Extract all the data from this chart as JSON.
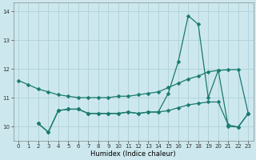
{
  "xlabel": "Humidex (Indice chaleur)",
  "bg_color": "#cce8ee",
  "grid_color": "#b0d0d8",
  "line_color": "#1a7a6e",
  "xlim": [
    -0.5,
    23.5
  ],
  "ylim": [
    9.5,
    14.3
  ],
  "yticks": [
    10,
    11,
    12,
    13,
    14
  ],
  "xticks": [
    0,
    1,
    2,
    3,
    4,
    5,
    6,
    7,
    8,
    9,
    10,
    11,
    12,
    13,
    14,
    15,
    16,
    17,
    18,
    19,
    20,
    21,
    22,
    23
  ],
  "line1_x": [
    0,
    1,
    2,
    3,
    4,
    5,
    6,
    7,
    8,
    9,
    10,
    11,
    12,
    13,
    14,
    15,
    16,
    17,
    18,
    19,
    20,
    21,
    22,
    23
  ],
  "line1_y": [
    11.6,
    11.45,
    11.3,
    11.2,
    11.1,
    11.05,
    11.0,
    11.0,
    11.0,
    11.0,
    11.05,
    11.05,
    11.1,
    11.15,
    11.2,
    11.35,
    11.5,
    11.65,
    11.75,
    11.9,
    11.95,
    11.97,
    11.98,
    10.45
  ],
  "line2_x": [
    2,
    3,
    4,
    5,
    6,
    7,
    8,
    9,
    10,
    11,
    12,
    13,
    14,
    15,
    16,
    17,
    18,
    19,
    20,
    21,
    22,
    23
  ],
  "line2_y": [
    10.1,
    9.8,
    10.55,
    10.6,
    10.6,
    10.45,
    10.45,
    10.45,
    10.45,
    10.5,
    10.45,
    10.5,
    10.5,
    11.15,
    12.25,
    13.85,
    13.55,
    11.0,
    11.95,
    10.0,
    9.98,
    10.45
  ],
  "line3_x": [
    2,
    3,
    4,
    5,
    6,
    7,
    8,
    9,
    10,
    11,
    12,
    13,
    14,
    15,
    16,
    17,
    18,
    19,
    20,
    21,
    22,
    23
  ],
  "line3_y": [
    10.1,
    9.8,
    10.55,
    10.6,
    10.6,
    10.45,
    10.45,
    10.45,
    10.45,
    10.5,
    10.45,
    10.5,
    10.5,
    10.55,
    10.65,
    10.75,
    10.8,
    10.85,
    10.85,
    10.05,
    9.98,
    10.45
  ]
}
